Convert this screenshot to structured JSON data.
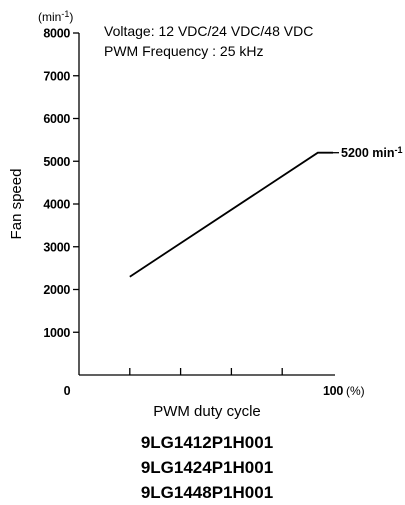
{
  "chart_data": {
    "type": "line",
    "ylabel": "Fan speed",
    "y_unit": "(min",
    "y_unit_sup": "-1",
    "y_unit_close": ")",
    "xlabel": "PWM duty cycle",
    "x_unit": "(%)",
    "xlim": [
      0,
      100
    ],
    "ylim": [
      0,
      8000
    ],
    "x_ticks": [
      20,
      40,
      60,
      80
    ],
    "x_tick_labels": [
      "0",
      "100"
    ],
    "y_ticks": [
      1000,
      2000,
      3000,
      4000,
      5000,
      6000,
      7000,
      8000
    ],
    "y_tick_labels": [
      "1000",
      "2000",
      "3000",
      "4000",
      "5000",
      "6000",
      "7000",
      "8000"
    ],
    "series": [
      {
        "values": [
          [
            20,
            2300
          ],
          [
            94,
            5200
          ],
          [
            100,
            5200
          ]
        ]
      }
    ],
    "end_label": "5200 min",
    "end_label_sup": "-1",
    "notes": [
      "Voltage: 12 VDC/24 VDC/48 VDC",
      "PWM Frequency : 25 kHz"
    ],
    "grid": false,
    "line_color": "#000000"
  },
  "models": [
    "9LG1412P1H001",
    "9LG1424P1H001",
    "9LG1448P1H001"
  ]
}
